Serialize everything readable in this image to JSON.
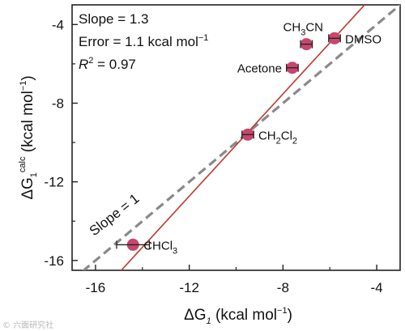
{
  "chart_data": {
    "type": "scatter",
    "xlabel": {
      "symbol": "ΔG",
      "sub": "1",
      "units": " (kcal mol",
      "sup": "−1",
      "close": ")"
    },
    "ylabel": {
      "symbol": "ΔG",
      "sub": "1",
      "sup1": "calc",
      "units": " (kcal mol",
      "sup": "−1",
      "close": ")"
    },
    "xlim": [
      -17,
      -3
    ],
    "ylim": [
      -16.5,
      -3
    ],
    "xticks": [
      -16,
      -12,
      -8,
      -4
    ],
    "yticks": [
      -16,
      -12,
      -8,
      -4
    ],
    "xtick_labels": [
      "-16",
      "-12",
      "-8",
      "-4"
    ],
    "ytick_labels": [
      "-16",
      "-12",
      "-8",
      "-4"
    ],
    "stats": {
      "slope": "Slope = 1.3",
      "error_prefix": "Error = 1.1 kcal mol",
      "error_sup": "−1",
      "r2_symbol": "R",
      "r2_sup": "2",
      "r2_value": " = 0.97"
    },
    "points": [
      {
        "label": "DMSO",
        "parts": [
          [
            "DMSO",
            ""
          ]
        ],
        "x": -5.8,
        "y": -4.7,
        "xerr": 0.25,
        "label_side": "right"
      },
      {
        "label": "CH3CN",
        "parts": [
          [
            "CH",
            ""
          ],
          [
            "3",
            "sub"
          ],
          [
            "CN",
            ""
          ]
        ],
        "x": -7.0,
        "y": -5.0,
        "xerr": 0.25,
        "label_side": "above"
      },
      {
        "label": "Acetone",
        "parts": [
          [
            "Acetone",
            ""
          ]
        ],
        "x": -7.6,
        "y": -6.2,
        "xerr": 0.25,
        "label_side": "left"
      },
      {
        "label": "CH2Cl2",
        "parts": [
          [
            "CH",
            ""
          ],
          [
            "2",
            "sub"
          ],
          [
            "Cl",
            ""
          ],
          [
            "2",
            "sub"
          ]
        ],
        "x": -9.5,
        "y": -9.6,
        "xerr": 0.25,
        "label_side": "right"
      },
      {
        "label": "CHCl3",
        "parts": [
          [
            "CHCl",
            ""
          ],
          [
            "3",
            "sub"
          ]
        ],
        "x": -14.4,
        "y": -15.2,
        "xerr": 0.7,
        "label_side": "right"
      }
    ],
    "fit_line": {
      "slope": 1.3,
      "intercept": 2.87,
      "color": "#c0392b"
    },
    "identity_line": {
      "slope": 1,
      "intercept": 0,
      "label": "Slope = 1",
      "color": "#8a8a8a"
    },
    "marker_color": "#c8456e"
  },
  "watermark": "© 六面研究社"
}
